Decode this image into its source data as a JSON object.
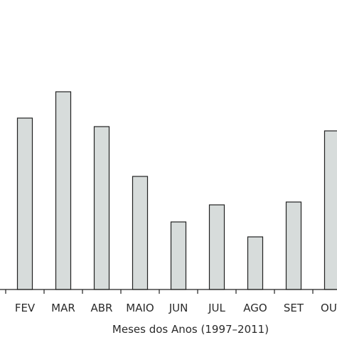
{
  "chart_data": {
    "type": "bar",
    "xlabel": "Meses dos Anos (1997–2011)",
    "ylabel": "",
    "categories": [
      "FEV",
      "MAR",
      "ABR",
      "MAIO",
      "JUN",
      "JUL",
      "AGO",
      "SET",
      "OUT"
    ],
    "values": [
      241,
      278,
      229,
      159,
      95,
      119,
      74,
      123,
      223
    ],
    "ylim": [
      0,
      300
    ],
    "grid": false,
    "legend": "none",
    "bar_fill": "#d7dcdb",
    "bar_stroke": "#222222",
    "axis_color": "#222222"
  }
}
